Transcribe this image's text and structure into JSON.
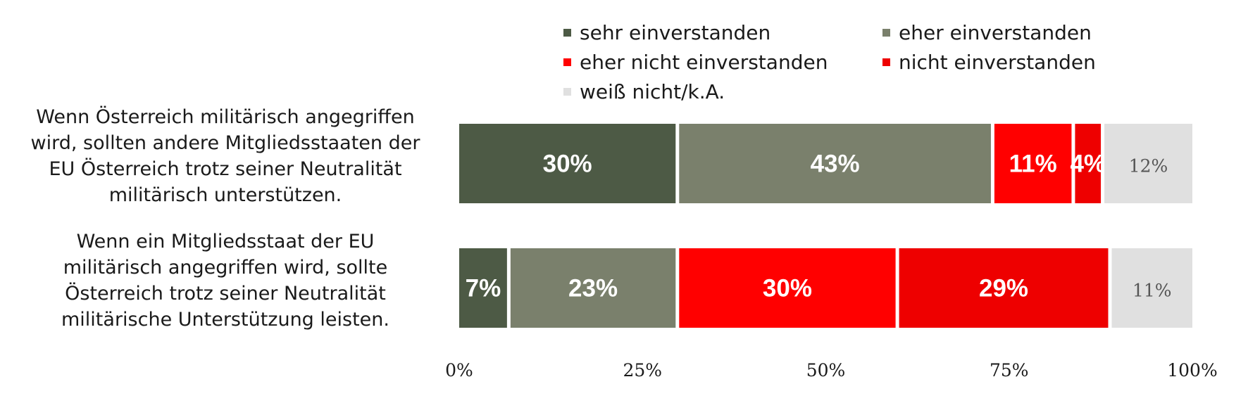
{
  "chart_data": {
    "type": "bar",
    "orientation": "horizontal",
    "stacked": true,
    "categories": [
      "Wenn Österreich militärisch angegriffen wird, sollten andere Mitgliedsstaaten der EU Österreich trotz seiner Neutralität militärisch unterstützen.",
      "Wenn ein Mitgliedsstaat der EU militärisch angegriffen wird, sollte Österreich trotz seiner Neutralität militärische Unterstützung leisten."
    ],
    "category_lines": [
      [
        "Wenn Österreich militärisch angegriffen",
        "wird, sollten andere Mitgliedsstaaten der",
        "EU Österreich trotz seiner Neutralität",
        "militärisch unterstützen."
      ],
      [
        "Wenn ein Mitgliedsstaat der EU",
        "militärisch angegriffen wird, sollte",
        "Österreich trotz seiner Neutralität",
        "militärische Unterstützung leisten."
      ]
    ],
    "series": [
      {
        "name": "sehr einverstanden",
        "color": "#4d5a45",
        "label_color": "#ffffff",
        "values": [
          30,
          7
        ],
        "labels": [
          "30%",
          "7%"
        ]
      },
      {
        "name": "eher einverstanden",
        "color": "#7a806c",
        "label_color": "#ffffff",
        "values": [
          43,
          23
        ],
        "labels": [
          "43%",
          "23%"
        ]
      },
      {
        "name": "eher nicht einverstanden",
        "color": "#ff0000",
        "label_color": "#ffffff",
        "values": [
          11,
          30
        ],
        "labels": [
          "11%",
          "30%"
        ]
      },
      {
        "name": "nicht einverstanden",
        "color": "#ee0000",
        "label_color": "#ffffff",
        "values": [
          4,
          29
        ],
        "labels": [
          "4%",
          "29%"
        ]
      },
      {
        "name": "weiß nicht/k.A.",
        "color": "#e0e0e0",
        "label_color": "#555555",
        "values": [
          12,
          11
        ],
        "labels": [
          "12%",
          "11%"
        ]
      }
    ],
    "xlim": [
      0,
      100
    ],
    "xticks": [
      0,
      25,
      50,
      75,
      100
    ],
    "xtick_labels": [
      "0%",
      "25%",
      "50%",
      "75%",
      "100%"
    ],
    "grid": false,
    "legend_position": "top"
  }
}
